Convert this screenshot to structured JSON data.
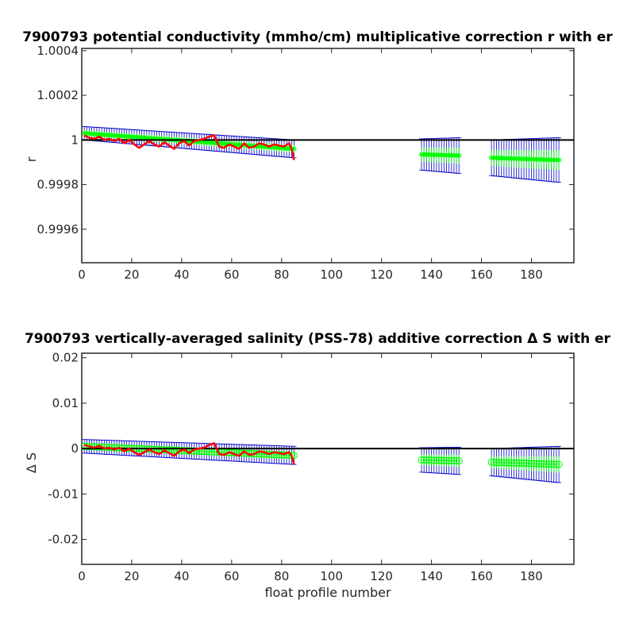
{
  "figure": {
    "width": 800,
    "height": 800
  },
  "colors": {
    "errorbar": "#0000cc",
    "fit": "#00ff00",
    "raw": "#ff0000",
    "zero_line": "#000000",
    "axes": "#262626"
  },
  "chart_data": [
    {
      "type": "line",
      "title": "7900793 potential conductivity (mmho/cm) multiplicative correction r with er",
      "xlabel": "",
      "ylabel": "r",
      "xlim": [
        0,
        197
      ],
      "ylim": [
        0.99945,
        1.00041
      ],
      "xticks": [
        0,
        20,
        40,
        60,
        80,
        100,
        120,
        140,
        160,
        180
      ],
      "xtick_labels": [
        "0",
        "20",
        "40",
        "60",
        "80",
        "100",
        "120",
        "140",
        "160",
        "180"
      ],
      "yticks": [
        0.9996,
        0.9998,
        1.0,
        1.0002,
        1.0004
      ],
      "ytick_labels": [
        "0.9996",
        "0.9998",
        "1",
        "1.0002",
        "1.0004"
      ],
      "reference_line": 1.0,
      "marker": "star",
      "segments": [
        {
          "x0": 1,
          "x1": 85,
          "y0": 1.00003,
          "y1": 0.99996,
          "err0": 3e-05,
          "err1": 4e-05
        },
        {
          "x0": 136,
          "x1": 151,
          "y0": 0.999935,
          "y1": 0.99993,
          "err0": 7e-05,
          "err1": 8e-05
        },
        {
          "x0": 164,
          "x1": 191,
          "y0": 0.99992,
          "y1": 0.99991,
          "err0": 8e-05,
          "err1": 0.0001
        }
      ],
      "raw_series": {
        "x": [
          1,
          3,
          5,
          7,
          9,
          11,
          13,
          15,
          17,
          19,
          21,
          23,
          25,
          27,
          29,
          31,
          33,
          35,
          37,
          39,
          41,
          43,
          45,
          47,
          49,
          51,
          53,
          55,
          57,
          59,
          61,
          63,
          65,
          67,
          69,
          71,
          73,
          75,
          77,
          79,
          81,
          83,
          84,
          85
        ],
        "y": [
          1.00002,
          1.00001,
          1.000005,
          1.000015,
          1.0,
          1.000005,
          0.999995,
          1.000005,
          0.999985,
          1.0,
          0.99998,
          0.999965,
          0.99998,
          0.999995,
          0.99998,
          0.99997,
          0.99999,
          0.999975,
          0.99996,
          0.999985,
          0.999995,
          0.999975,
          0.999995,
          1.0,
          1.000005,
          1.000015,
          1.00002,
          0.99997,
          0.999965,
          0.99998,
          0.99997,
          0.99996,
          0.999985,
          0.999965,
          0.99997,
          0.999985,
          0.99998,
          0.99997,
          0.99998,
          0.999975,
          0.99997,
          0.999985,
          0.99996,
          0.99991
        ]
      }
    },
    {
      "type": "line",
      "title": "7900793 vertically-averaged salinity (PSS-78) additive correction Δ S with er",
      "xlabel": "float profile number",
      "ylabel": "Δ S",
      "xlim": [
        0,
        197
      ],
      "ylim": [
        -0.0255,
        0.021
      ],
      "xticks": [
        0,
        20,
        40,
        60,
        80,
        100,
        120,
        140,
        160,
        180
      ],
      "xtick_labels": [
        "0",
        "20",
        "40",
        "60",
        "80",
        "100",
        "120",
        "140",
        "160",
        "180"
      ],
      "yticks": [
        -0.02,
        -0.01,
        0,
        0.01,
        0.02
      ],
      "ytick_labels": [
        "-0.02",
        "-0.01",
        "0",
        "0.01",
        "0.02"
      ],
      "reference_line": 0,
      "marker": "circle",
      "segments": [
        {
          "x0": 1,
          "x1": 85,
          "y0": 0.0005,
          "y1": -0.0015,
          "err0": 0.0015,
          "err1": 0.002
        },
        {
          "x0": 136,
          "x1": 151,
          "y0": -0.0025,
          "y1": -0.0027,
          "err0": 0.0027,
          "err1": 0.003
        },
        {
          "x0": 164,
          "x1": 191,
          "y0": -0.003,
          "y1": -0.0035,
          "err0": 0.003,
          "err1": 0.004
        }
      ],
      "raw_series": {
        "x": [
          1,
          3,
          5,
          7,
          9,
          11,
          13,
          15,
          17,
          19,
          21,
          23,
          25,
          27,
          29,
          31,
          33,
          35,
          37,
          39,
          41,
          43,
          45,
          47,
          49,
          51,
          53,
          55,
          57,
          59,
          61,
          63,
          65,
          67,
          69,
          71,
          73,
          75,
          77,
          79,
          81,
          83,
          84,
          85
        ],
        "y": [
          0.0008,
          0.0005,
          0.0002,
          0.0006,
          0.0,
          0.0002,
          -0.0002,
          0.0002,
          -0.0006,
          0.0,
          -0.0008,
          -0.0014,
          -0.0008,
          -0.0002,
          -0.0008,
          -0.0012,
          -0.0004,
          -0.001,
          -0.0016,
          -0.0006,
          -0.0002,
          -0.001,
          -0.0002,
          0.0,
          0.0002,
          0.0008,
          0.0012,
          -0.0012,
          -0.0014,
          -0.0008,
          -0.0012,
          -0.0016,
          -0.0006,
          -0.0014,
          -0.0012,
          -0.0006,
          -0.0008,
          -0.0012,
          -0.0008,
          -0.001,
          -0.0012,
          -0.0008,
          -0.0016,
          -0.0035
        ]
      }
    }
  ]
}
